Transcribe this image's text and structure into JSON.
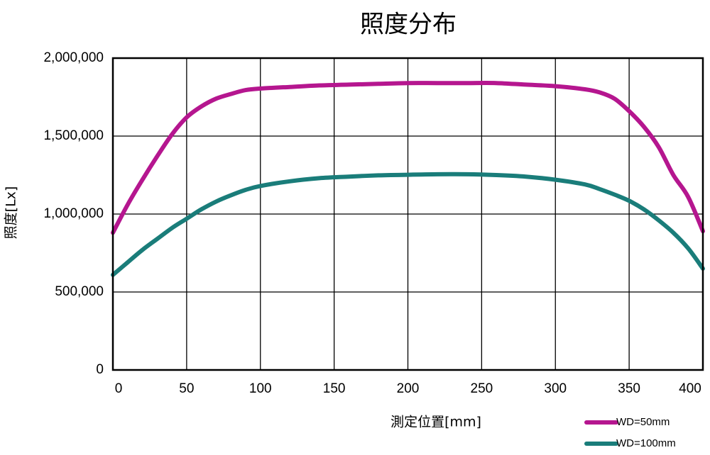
{
  "colors": {
    "background": "#ffffff",
    "grid": "#000000",
    "wd50": "#b5168f",
    "wd100": "#1a7d7a"
  },
  "chart_data": {
    "type": "line",
    "title": "照度分布",
    "xlabel": "測定位置[mm]",
    "ylabel": "照度[Lx]",
    "xlim": [
      0,
      400
    ],
    "ylim": [
      0,
      2000000
    ],
    "x_ticks": [
      0,
      50,
      100,
      150,
      200,
      250,
      300,
      350,
      400
    ],
    "x_tick_labels": [
      "0",
      "50",
      "100",
      "150",
      "200",
      "250",
      "300",
      "350",
      "400"
    ],
    "y_ticks": [
      0,
      500000,
      1000000,
      1500000,
      2000000
    ],
    "y_tick_labels": [
      "0",
      "500,000",
      "1,000,000",
      "1,500,000",
      "2,000,000"
    ],
    "grid": true,
    "legend_position": "bottom-right",
    "series": [
      {
        "name": "WD=50mm",
        "color": "#b5168f",
        "x": [
          0,
          10,
          20,
          30,
          40,
          50,
          60,
          70,
          80,
          90,
          100,
          120,
          140,
          160,
          180,
          200,
          220,
          240,
          260,
          280,
          300,
          320,
          330,
          340,
          350,
          360,
          370,
          380,
          390,
          400
        ],
        "y": [
          880000,
          1060000,
          1220000,
          1370000,
          1510000,
          1620000,
          1690000,
          1740000,
          1770000,
          1795000,
          1805000,
          1815000,
          1825000,
          1830000,
          1835000,
          1840000,
          1840000,
          1840000,
          1840000,
          1830000,
          1820000,
          1800000,
          1780000,
          1740000,
          1660000,
          1560000,
          1430000,
          1250000,
          1110000,
          890000
        ]
      },
      {
        "name": "WD=100mm",
        "color": "#1a7d7a",
        "x": [
          0,
          10,
          20,
          30,
          40,
          50,
          60,
          70,
          80,
          90,
          100,
          120,
          140,
          160,
          180,
          200,
          220,
          240,
          260,
          280,
          300,
          320,
          330,
          340,
          350,
          360,
          370,
          380,
          390,
          400
        ],
        "y": [
          610000,
          690000,
          770000,
          840000,
          910000,
          970000,
          1030000,
          1080000,
          1120000,
          1155000,
          1180000,
          1210000,
          1230000,
          1240000,
          1248000,
          1252000,
          1255000,
          1255000,
          1250000,
          1240000,
          1220000,
          1190000,
          1160000,
          1125000,
          1085000,
          1030000,
          960000,
          880000,
          780000,
          650000
        ]
      }
    ]
  }
}
